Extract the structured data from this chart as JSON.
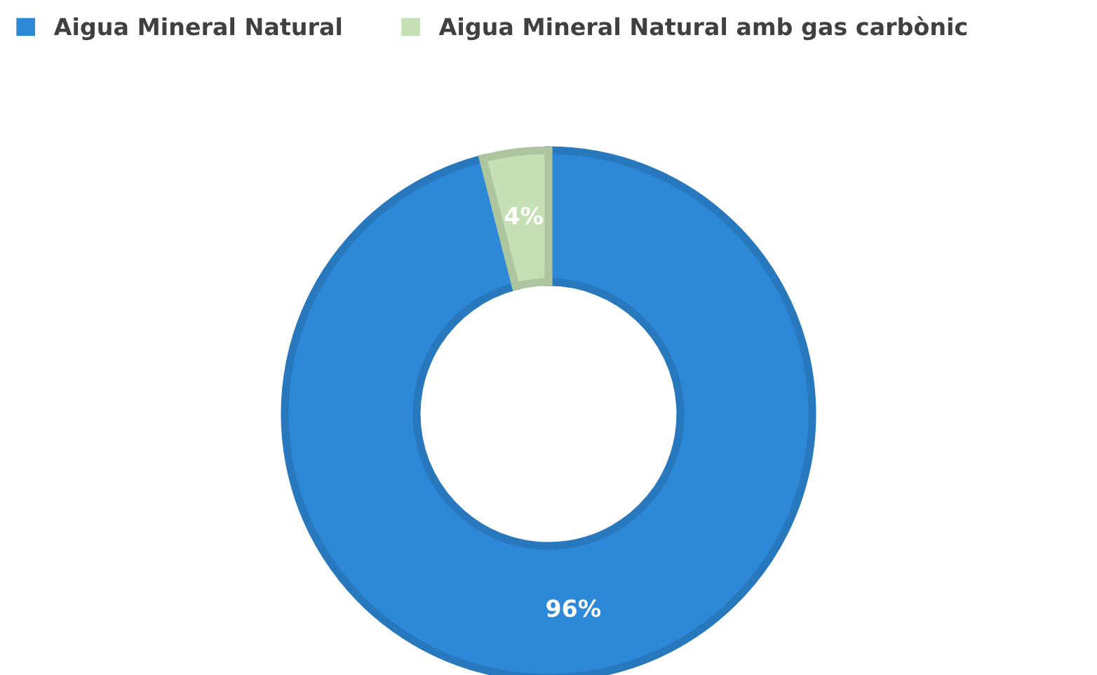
{
  "chart_data": {
    "type": "donut",
    "categories": [
      "Aigua Mineral Natural",
      "Aigua Mineral Natural amb gas carbònic"
    ],
    "values": [
      96,
      4
    ],
    "colors": [
      "#2e88d8",
      "#c5e0b4"
    ],
    "value_labels": [
      "96%",
      "4%"
    ],
    "legend": "top left"
  }
}
